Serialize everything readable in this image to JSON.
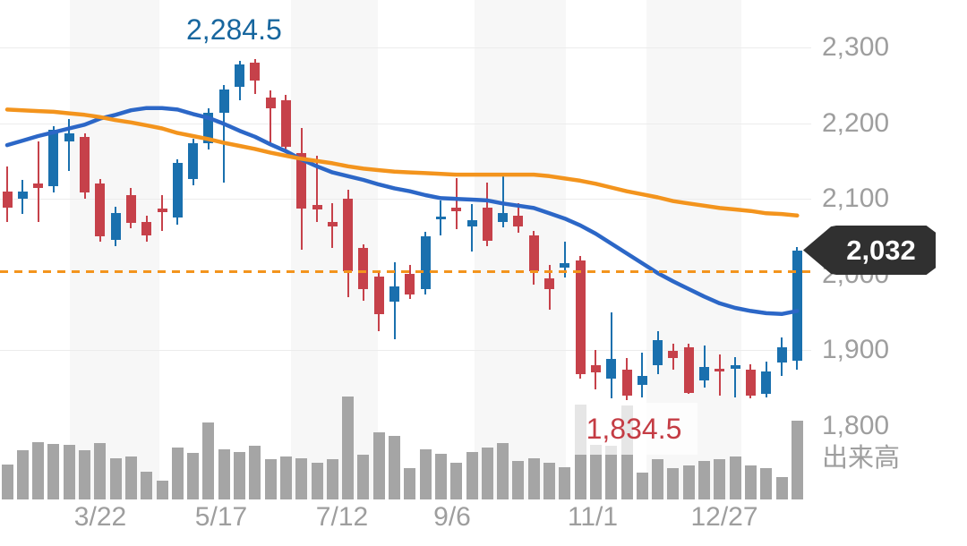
{
  "chart_data": {
    "type": "candlestick",
    "title": "",
    "period": "weekly, 1 year",
    "y_axis": {
      "ticks": [
        {
          "label": "2,300",
          "value": 2300
        },
        {
          "label": "2,200",
          "value": 2200
        },
        {
          "label": "2,100",
          "value": 2100
        },
        {
          "label": "2,000",
          "value": 2000
        },
        {
          "label": "1,900",
          "value": 1900
        },
        {
          "label": "1,800",
          "value": 1800
        }
      ],
      "gridline_values": [
        2300,
        2200,
        2100,
        1900
      ],
      "range": [
        1790,
        2320
      ]
    },
    "x_axis": {
      "ticks": [
        {
          "label": "3/22",
          "candle_index": 6.0
        },
        {
          "label": "5/17",
          "candle_index": 13.8
        },
        {
          "label": "7/12",
          "candle_index": 21.6
        },
        {
          "label": "9/6",
          "candle_index": 28.7
        },
        {
          "label": "11/1",
          "candle_index": 37.8
        },
        {
          "label": "12/27",
          "candle_index": 46.3
        }
      ]
    },
    "annotations": {
      "period_high": "2,284.5",
      "period_high_value": 2284.5,
      "period_low": "1,834.5",
      "period_low_value": 1834.5,
      "current_price": "2,032",
      "current_price_value": 2032,
      "prev_close_line_value": 2005
    },
    "volume_label": "出来高",
    "volume_unit": "relative",
    "series": {
      "candles_ohlc": [
        [
          2110,
          2143,
          2070,
          2088
        ],
        [
          2100,
          2125,
          2080,
          2110
        ],
        [
          2120,
          2176,
          2070,
          2114
        ],
        [
          2117,
          2196,
          2108,
          2191
        ],
        [
          2176,
          2205,
          2137,
          2187
        ],
        [
          2182,
          2187,
          2100,
          2108
        ],
        [
          2120,
          2126,
          2043,
          2051
        ],
        [
          2046,
          2090,
          2037,
          2081
        ],
        [
          2105,
          2114,
          2061,
          2069
        ],
        [
          2069,
          2078,
          2043,
          2052
        ],
        [
          2087,
          2105,
          2058,
          2082
        ],
        [
          2075,
          2152,
          2066,
          2147
        ],
        [
          2126,
          2179,
          2118,
          2173
        ],
        [
          2173,
          2220,
          2165,
          2214
        ],
        [
          2214,
          2250,
          2122,
          2244
        ],
        [
          2248,
          2282,
          2230,
          2278
        ],
        [
          2280,
          2284.5,
          2238,
          2256
        ],
        [
          2234,
          2243,
          2173,
          2220
        ],
        [
          2230,
          2238,
          2161,
          2169
        ],
        [
          2161,
          2194,
          2033,
          2087
        ],
        [
          2092,
          2157,
          2070,
          2086
        ],
        [
          2070,
          2094,
          2035,
          2064
        ],
        [
          2100,
          2112,
          1970,
          2004
        ],
        [
          2035,
          2040,
          1965,
          1981
        ],
        [
          1998,
          2005,
          1925,
          1948
        ],
        [
          1964,
          2016,
          1915,
          1984
        ],
        [
          2001,
          2013,
          1968,
          1974
        ],
        [
          1981,
          2057,
          1974,
          2051
        ],
        [
          2073,
          2098,
          2052,
          2077
        ],
        [
          2088,
          2128,
          2060,
          2084
        ],
        [
          2064,
          2093,
          2030,
          2072
        ],
        [
          2088,
          2122,
          2037,
          2045
        ],
        [
          2070,
          2131,
          2062,
          2081
        ],
        [
          2078,
          2094,
          2055,
          2064
        ],
        [
          2052,
          2058,
          1987,
          2005
        ],
        [
          1995,
          2013,
          1954,
          1981
        ],
        [
          2009,
          2043,
          1996,
          2015
        ],
        [
          2019,
          2025,
          1862,
          1869
        ],
        [
          1880,
          1901,
          1848,
          1871
        ],
        [
          1862,
          1950,
          1836,
          1889
        ],
        [
          1874,
          1890,
          1834.5,
          1840
        ],
        [
          1854,
          1897,
          1838,
          1866
        ],
        [
          1880,
          1925,
          1869,
          1913
        ],
        [
          1899,
          1909,
          1874,
          1890
        ],
        [
          1904,
          1909,
          1842,
          1844
        ],
        [
          1860,
          1907,
          1851,
          1878
        ],
        [
          1876,
          1895,
          1840,
          1872
        ],
        [
          1876,
          1891,
          1838,
          1880
        ],
        [
          1875,
          1882,
          1836,
          1840
        ],
        [
          1842,
          1885,
          1838,
          1872
        ],
        [
          1884,
          1917,
          1866,
          1904
        ],
        [
          1886,
          2037,
          1874,
          2032
        ]
      ],
      "volume": [
        39,
        55,
        64,
        62,
        61,
        55,
        63,
        46,
        48,
        31,
        21,
        58,
        52,
        86,
        56,
        53,
        60,
        45,
        48,
        46,
        41,
        45,
        115,
        50,
        75,
        71,
        35,
        56,
        51,
        41,
        53,
        58,
        63,
        43,
        46,
        41,
        36,
        106,
        61,
        60,
        105,
        30,
        45,
        35,
        38,
        43,
        45,
        48,
        38,
        35,
        25,
        88
      ],
      "ma_short": [
        2171,
        2177,
        2183,
        2188,
        2193,
        2198,
        2206,
        2211,
        2217,
        2220,
        2220,
        2218,
        2212,
        2207,
        2199,
        2190,
        2182,
        2172,
        2163,
        2152,
        2143,
        2135,
        2130,
        2125,
        2119,
        2114,
        2110,
        2105,
        2101,
        2100,
        2099,
        2098,
        2094,
        2091,
        2088,
        2081,
        2074,
        2065,
        2054,
        2041,
        2028,
        2015,
        2002,
        1991,
        1981,
        1971,
        1962,
        1956,
        1952,
        1949,
        1948,
        1952
      ],
      "ma_long": [
        2218,
        2217,
        2216,
        2215,
        2213,
        2211,
        2208,
        2204,
        2201,
        2197,
        2193,
        2187,
        2183,
        2179,
        2174,
        2170,
        2166,
        2161,
        2157,
        2153,
        2150,
        2147,
        2143,
        2140,
        2138,
        2136,
        2135,
        2134,
        2133,
        2132,
        2132,
        2132,
        2132,
        2132,
        2132,
        2130,
        2127,
        2124,
        2120,
        2115,
        2110,
        2106,
        2102,
        2097,
        2094,
        2091,
        2088,
        2086,
        2084,
        2081,
        2080,
        2078
      ]
    },
    "colors": {
      "up": "#1a70ae",
      "down": "#c6414a",
      "ma_short": "#2c67c7",
      "ma_long": "#f3941d",
      "prev_close_line": "#f3941d",
      "volume": "#a5a5a5",
      "axis_text": "#9e9e9e",
      "high_text": "#17669e",
      "low_text": "#c43c44",
      "badge_bg": "#303030",
      "badge_text": "#ffffff",
      "month_band": "#f7f7f7"
    },
    "legend": "none",
    "grid": "horizontal only"
  }
}
